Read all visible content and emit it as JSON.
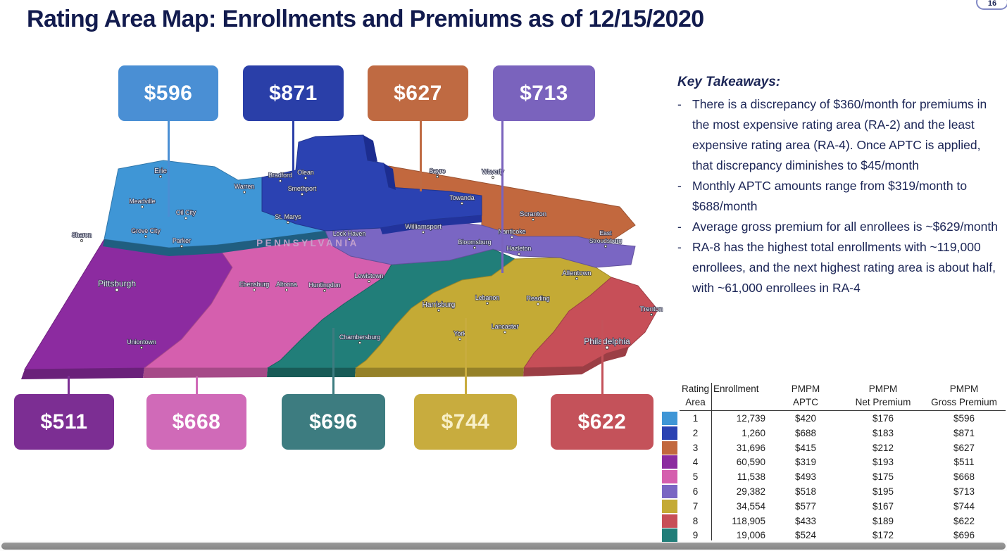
{
  "page": {
    "title": "Rating Area Map: Enrollments and Premiums as of 12/15/2020",
    "page_number": "16"
  },
  "map": {
    "state_label": "PENNSYLVANIA",
    "cities": [
      "Erie",
      "Meadville",
      "Warren",
      "Oil City",
      "Sharon",
      "Grove City",
      "Parker",
      "Bradford",
      "Olean",
      "Smethport",
      "Sayre",
      "Waverly",
      "Towanda",
      "Scranton",
      "St. Marys",
      "Williamsport",
      "Lock Haven",
      "Bloomsburg",
      "Nanticoke",
      "Hazleton",
      "East Stroudsburg",
      "Allentown",
      "Ebensburg",
      "Altoona",
      "Huntingdon",
      "Pittsburgh",
      "Uniontown",
      "Lewistown",
      "Harrisburg",
      "Chambersburg",
      "Lebanon",
      "Reading",
      "Lancaster",
      "York",
      "Philadelphia",
      "Trenton"
    ]
  },
  "areas": [
    {
      "area": "1",
      "map_color": "#3f96d6",
      "callout_color": "#4a8fd4",
      "gross_premium": "$596"
    },
    {
      "area": "2",
      "map_color": "#2b42b2",
      "callout_color": "#2a3fa8",
      "gross_premium": "$871"
    },
    {
      "area": "3",
      "map_color": "#c2683e",
      "callout_color": "#bf6a42",
      "gross_premium": "$627"
    },
    {
      "area": "4",
      "map_color": "#8c2ba0",
      "callout_color": "#7c2e93",
      "gross_premium": "$511"
    },
    {
      "area": "5",
      "map_color": "#d55fae",
      "callout_color": "#d06ab8",
      "gross_premium": "$668"
    },
    {
      "area": "6",
      "map_color": "#7a66c3",
      "callout_color": "#7a63bd",
      "gross_premium": "$713"
    },
    {
      "area": "7",
      "map_color": "#c4aa35",
      "callout_color": "#c8ac3e",
      "callout_text_color": "#f8f0c8",
      "gross_premium": "$744"
    },
    {
      "area": "8",
      "map_color": "#c74f58",
      "callout_color": "#c4525a",
      "gross_premium": "$622"
    },
    {
      "area": "9",
      "map_color": "#217e79",
      "callout_color": "#3d7c80",
      "gross_premium": "$696"
    }
  ],
  "callouts": {
    "top_order": [
      "1",
      "2",
      "3",
      "6"
    ],
    "bottom_order": [
      "4",
      "5",
      "9",
      "7",
      "8"
    ]
  },
  "key_takeaways": {
    "title": "Key Takeaways:",
    "bullets": [
      "There is a discrepancy of $360/month for premiums in the most expensive rating area (RA-2) and the least expensive rating area (RA-4). Once APTC is applied, that discrepancy diminishes to $45/month",
      "Monthly APTC amounts range from $319/month to $688/month",
      "Average gross premium for all enrollees is ~$629/month",
      "RA-8 has the highest total enrollments with ~119,000 enrollees, and the next highest rating area is about half, with ~61,000 enrollees in RA-4"
    ]
  },
  "table": {
    "headers": [
      {
        "line1": "Rating",
        "line2": "Area"
      },
      {
        "line1": "",
        "line2": "Enrollment"
      },
      {
        "line1": "PMPM",
        "line2": "APTC"
      },
      {
        "line1": "PMPM",
        "line2": "Net Premium"
      },
      {
        "line1": "PMPM",
        "line2": "Gross Premium"
      }
    ],
    "rows": [
      {
        "area": "1",
        "enrollment": "12,739",
        "aptc": "$420",
        "net_premium": "$176",
        "gross_premium": "$596"
      },
      {
        "area": "2",
        "enrollment": "1,260",
        "aptc": "$688",
        "net_premium": "$183",
        "gross_premium": "$871"
      },
      {
        "area": "3",
        "enrollment": "31,696",
        "aptc": "$415",
        "net_premium": "$212",
        "gross_premium": "$627"
      },
      {
        "area": "4",
        "enrollment": "60,590",
        "aptc": "$319",
        "net_premium": "$193",
        "gross_premium": "$511"
      },
      {
        "area": "5",
        "enrollment": "11,538",
        "aptc": "$493",
        "net_premium": "$175",
        "gross_premium": "$668"
      },
      {
        "area": "6",
        "enrollment": "29,382",
        "aptc": "$518",
        "net_premium": "$195",
        "gross_premium": "$713"
      },
      {
        "area": "7",
        "enrollment": "34,554",
        "aptc": "$577",
        "net_premium": "$167",
        "gross_premium": "$744"
      },
      {
        "area": "8",
        "enrollment": "118,905",
        "aptc": "$433",
        "net_premium": "$189",
        "gross_premium": "$622"
      },
      {
        "area": "9",
        "enrollment": "19,006",
        "aptc": "$524",
        "net_premium": "$172",
        "gross_premium": "$696"
      }
    ]
  }
}
